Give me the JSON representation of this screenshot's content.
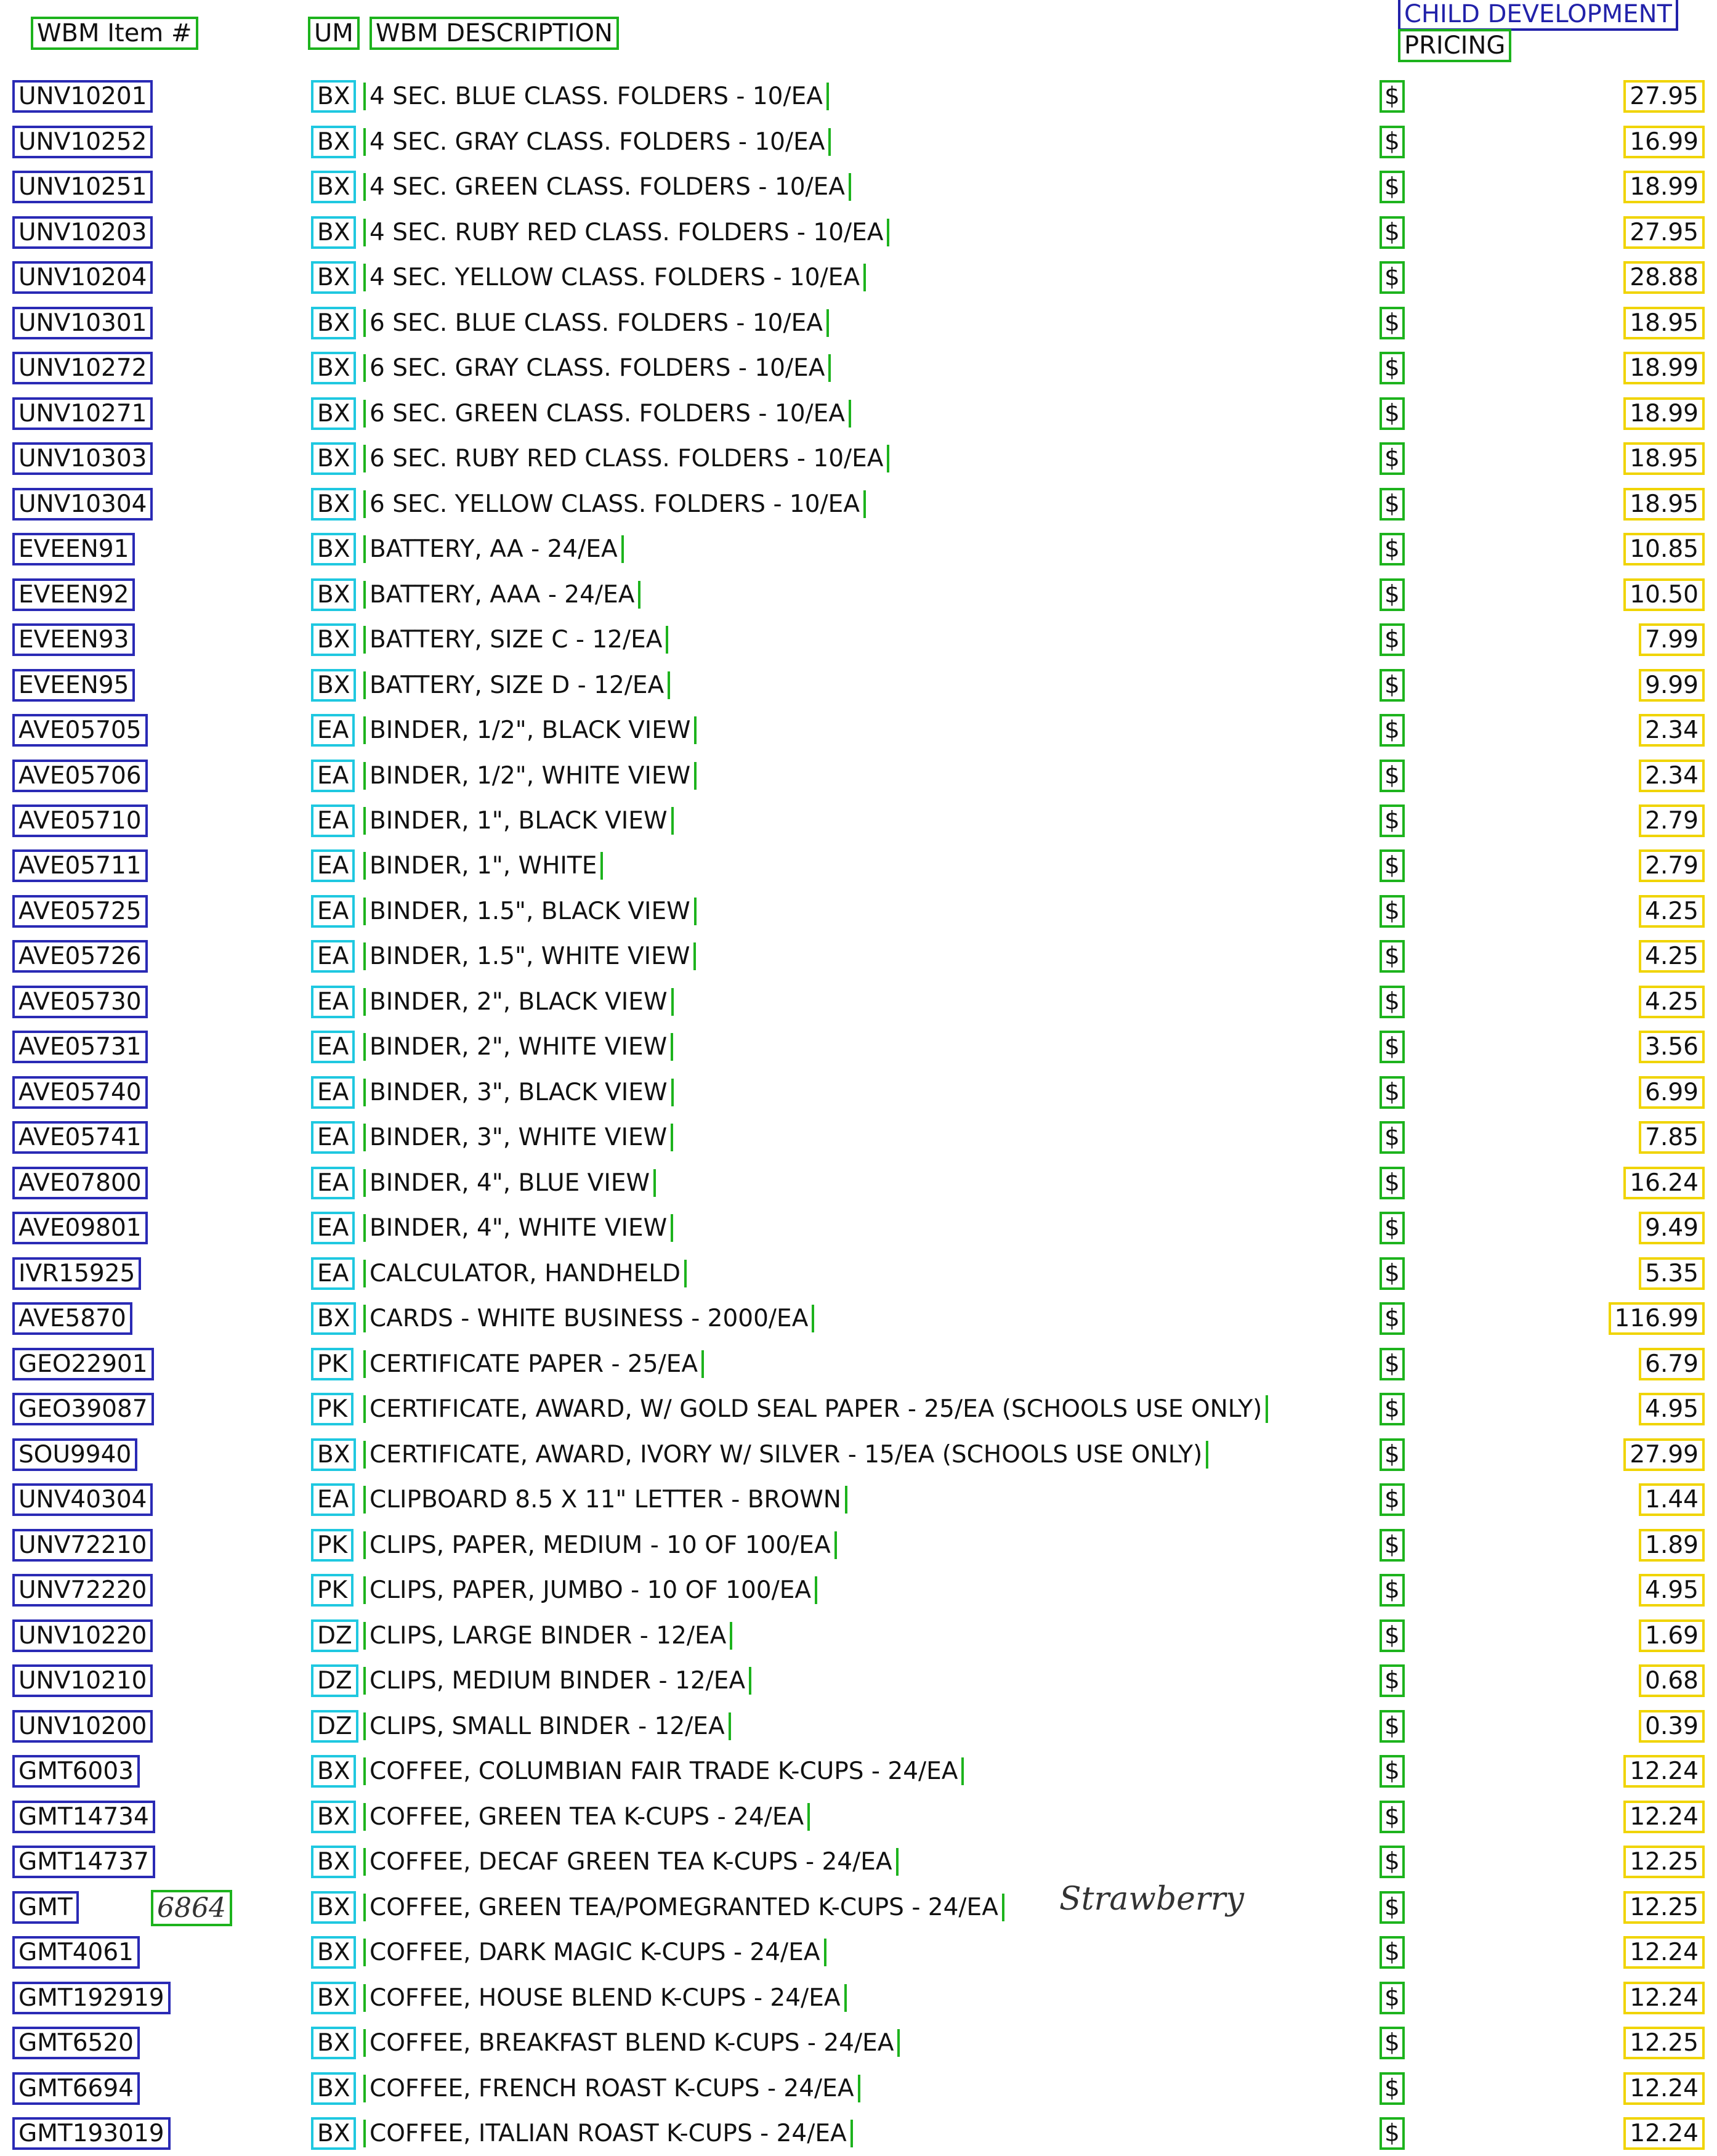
{
  "header": {
    "item_col": "WBM Item #",
    "um_col": "UM",
    "desc_col": "WBM DESCRIPTION",
    "banner": "CHILD DEVELOPMENT",
    "pricing_col": "PRICING"
  },
  "rows": [
    {
      "item": "UNV10201",
      "um": "BX",
      "desc": "4 SEC. BLUE CLASS. FOLDERS - 10/EA",
      "dollar": "$",
      "price": "27.95"
    },
    {
      "item": "UNV10252",
      "um": "BX",
      "desc": "4 SEC. GRAY CLASS. FOLDERS - 10/EA",
      "dollar": "$",
      "price": "16.99"
    },
    {
      "item": "UNV10251",
      "um": "BX",
      "desc": "4 SEC. GREEN CLASS. FOLDERS - 10/EA",
      "dollar": "$",
      "price": "18.99"
    },
    {
      "item": "UNV10203",
      "um": "BX",
      "desc": "4 SEC. RUBY RED CLASS. FOLDERS - 10/EA",
      "dollar": "$",
      "price": "27.95"
    },
    {
      "item": "UNV10204",
      "um": "BX",
      "desc": "4 SEC. YELLOW CLASS. FOLDERS - 10/EA",
      "dollar": "$",
      "price": "28.88"
    },
    {
      "item": "UNV10301",
      "um": "BX",
      "desc": "6 SEC. BLUE CLASS. FOLDERS - 10/EA",
      "dollar": "$",
      "price": "18.95"
    },
    {
      "item": "UNV10272",
      "um": "BX",
      "desc": "6 SEC. GRAY CLASS. FOLDERS - 10/EA",
      "dollar": "$",
      "price": "18.99"
    },
    {
      "item": "UNV10271",
      "um": "BX",
      "desc": "6 SEC. GREEN CLASS. FOLDERS - 10/EA",
      "dollar": "$",
      "price": "18.99"
    },
    {
      "item": "UNV10303",
      "um": "BX",
      "desc": "6 SEC. RUBY RED CLASS. FOLDERS - 10/EA",
      "dollar": "$",
      "price": "18.95"
    },
    {
      "item": "UNV10304",
      "um": "BX",
      "desc": "6 SEC. YELLOW CLASS. FOLDERS - 10/EA",
      "dollar": "$",
      "price": "18.95"
    },
    {
      "item": "EVEEN91",
      "um": "BX",
      "desc": "BATTERY, AA - 24/EA",
      "dollar": "$",
      "price": "10.85"
    },
    {
      "item": "EVEEN92",
      "um": "BX",
      "desc": "BATTERY, AAA - 24/EA",
      "dollar": "$",
      "price": "10.50"
    },
    {
      "item": "EVEEN93",
      "um": "BX",
      "desc": "BATTERY, SIZE C - 12/EA",
      "dollar": "$",
      "price": "7.99"
    },
    {
      "item": "EVEEN95",
      "um": "BX",
      "desc": "BATTERY, SIZE D - 12/EA",
      "dollar": "$",
      "price": "9.99"
    },
    {
      "item": "AVE05705",
      "um": "EA",
      "desc": "BINDER, 1/2\", BLACK VIEW",
      "dollar": "$",
      "price": "2.34"
    },
    {
      "item": "AVE05706",
      "um": "EA",
      "desc": "BINDER, 1/2\", WHITE VIEW",
      "dollar": "$",
      "price": "2.34"
    },
    {
      "item": "AVE05710",
      "um": "EA",
      "desc": "BINDER, 1\", BLACK VIEW",
      "dollar": "$",
      "price": "2.79"
    },
    {
      "item": "AVE05711",
      "um": "EA",
      "desc": "BINDER, 1\", WHITE",
      "dollar": "$",
      "price": "2.79"
    },
    {
      "item": "AVE05725",
      "um": "EA",
      "desc": "BINDER, 1.5\", BLACK VIEW",
      "dollar": "$",
      "price": "4.25"
    },
    {
      "item": "AVE05726",
      "um": "EA",
      "desc": "BINDER, 1.5\", WHITE VIEW",
      "dollar": "$",
      "price": "4.25"
    },
    {
      "item": "AVE05730",
      "um": "EA",
      "desc": "BINDER, 2\", BLACK VIEW",
      "dollar": "$",
      "price": "4.25"
    },
    {
      "item": "AVE05731",
      "um": "EA",
      "desc": "BINDER, 2\", WHITE VIEW",
      "dollar": "$",
      "price": "3.56"
    },
    {
      "item": "AVE05740",
      "um": "EA",
      "desc": "BINDER, 3\", BLACK VIEW",
      "dollar": "$",
      "price": "6.99"
    },
    {
      "item": "AVE05741",
      "um": "EA",
      "desc": "BINDER, 3\", WHITE VIEW",
      "dollar": "$",
      "price": "7.85"
    },
    {
      "item": "AVE07800",
      "um": "EA",
      "desc": "BINDER, 4\", BLUE VIEW",
      "dollar": "$",
      "price": "16.24"
    },
    {
      "item": "AVE09801",
      "um": "EA",
      "desc": "BINDER, 4\", WHITE VIEW",
      "dollar": "$",
      "price": "9.49"
    },
    {
      "item": "IVR15925",
      "um": "EA",
      "desc": "CALCULATOR, HANDHELD",
      "dollar": "$",
      "price": "5.35"
    },
    {
      "item": "AVE5870",
      "um": "BX",
      "desc": "CARDS - WHITE BUSINESS - 2000/EA",
      "dollar": "$",
      "price": "116.99"
    },
    {
      "item": "GEO22901",
      "um": "PK",
      "desc": "CERTIFICATE PAPER - 25/EA",
      "dollar": "$",
      "price": "6.79"
    },
    {
      "item": "GEO39087",
      "um": "PK",
      "desc": "CERTIFICATE, AWARD, W/ GOLD SEAL PAPER - 25/EA (SCHOOLS USE ONLY)",
      "dollar": "$",
      "price": "4.95"
    },
    {
      "item": "SOU9940",
      "um": "BX",
      "desc": "CERTIFICATE, AWARD, IVORY W/ SILVER - 15/EA (SCHOOLS USE ONLY)",
      "dollar": "$",
      "price": "27.99"
    },
    {
      "item": "UNV40304",
      "um": "EA",
      "desc": "CLIPBOARD 8.5 X 11\" LETTER - BROWN",
      "dollar": "$",
      "price": "1.44"
    },
    {
      "item": "UNV72210",
      "um": "PK",
      "desc": "CLIPS, PAPER, MEDIUM - 10 OF 100/EA",
      "dollar": "$",
      "price": "1.89"
    },
    {
      "item": "UNV72220",
      "um": "PK",
      "desc": "CLIPS, PAPER, JUMBO - 10 OF 100/EA",
      "dollar": "$",
      "price": "4.95"
    },
    {
      "item": "UNV10220",
      "um": "DZ",
      "desc": "CLIPS, LARGE BINDER - 12/EA",
      "dollar": "$",
      "price": "1.69"
    },
    {
      "item": "UNV10210",
      "um": "DZ",
      "desc": "CLIPS, MEDIUM BINDER - 12/EA",
      "dollar": "$",
      "price": "0.68"
    },
    {
      "item": "UNV10200",
      "um": "DZ",
      "desc": "CLIPS, SMALL BINDER - 12/EA",
      "dollar": "$",
      "price": "0.39"
    },
    {
      "item": "GMT6003",
      "um": "BX",
      "desc": "COFFEE, COLUMBIAN FAIR TRADE K-CUPS - 24/EA",
      "dollar": "$",
      "price": "12.24"
    },
    {
      "item": "GMT14734",
      "um": "BX",
      "desc": "COFFEE, GREEN TEA K-CUPS - 24/EA",
      "dollar": "$",
      "price": "12.24"
    },
    {
      "item": "GMT14737",
      "um": "BX",
      "desc": "COFFEE, DECAF GREEN TEA K-CUPS - 24/EA",
      "dollar": "$",
      "price": "12.25"
    },
    {
      "item": "GMT",
      "um": "BX",
      "desc": "COFFEE, GREEN TEA/POMEGRANTED K-CUPS - 24/EA",
      "dollar": "$",
      "price": "12.25",
      "hand_num": "6864",
      "hand_note": "Strawberry"
    },
    {
      "item": "GMT4061",
      "um": "BX",
      "desc": "COFFEE, DARK MAGIC K-CUPS - 24/EA",
      "dollar": "$",
      "price": "12.24"
    },
    {
      "item": "GMT192919",
      "um": "BX",
      "desc": "COFFEE, HOUSE BLEND K-CUPS - 24/EA",
      "dollar": "$",
      "price": "12.24"
    },
    {
      "item": "GMT6520",
      "um": "BX",
      "desc": "COFFEE, BREAKFAST BLEND K-CUPS - 24/EA",
      "dollar": "$",
      "price": "12.25"
    },
    {
      "item": "GMT6694",
      "um": "BX",
      "desc": "COFFEE, FRENCH ROAST K-CUPS - 24/EA",
      "dollar": "$",
      "price": "12.24"
    },
    {
      "item": "GMT193019",
      "um": "BX",
      "desc": "COFFEE, ITALIAN ROAST K-CUPS - 24/EA",
      "dollar": "$",
      "price": "12.24"
    }
  ]
}
